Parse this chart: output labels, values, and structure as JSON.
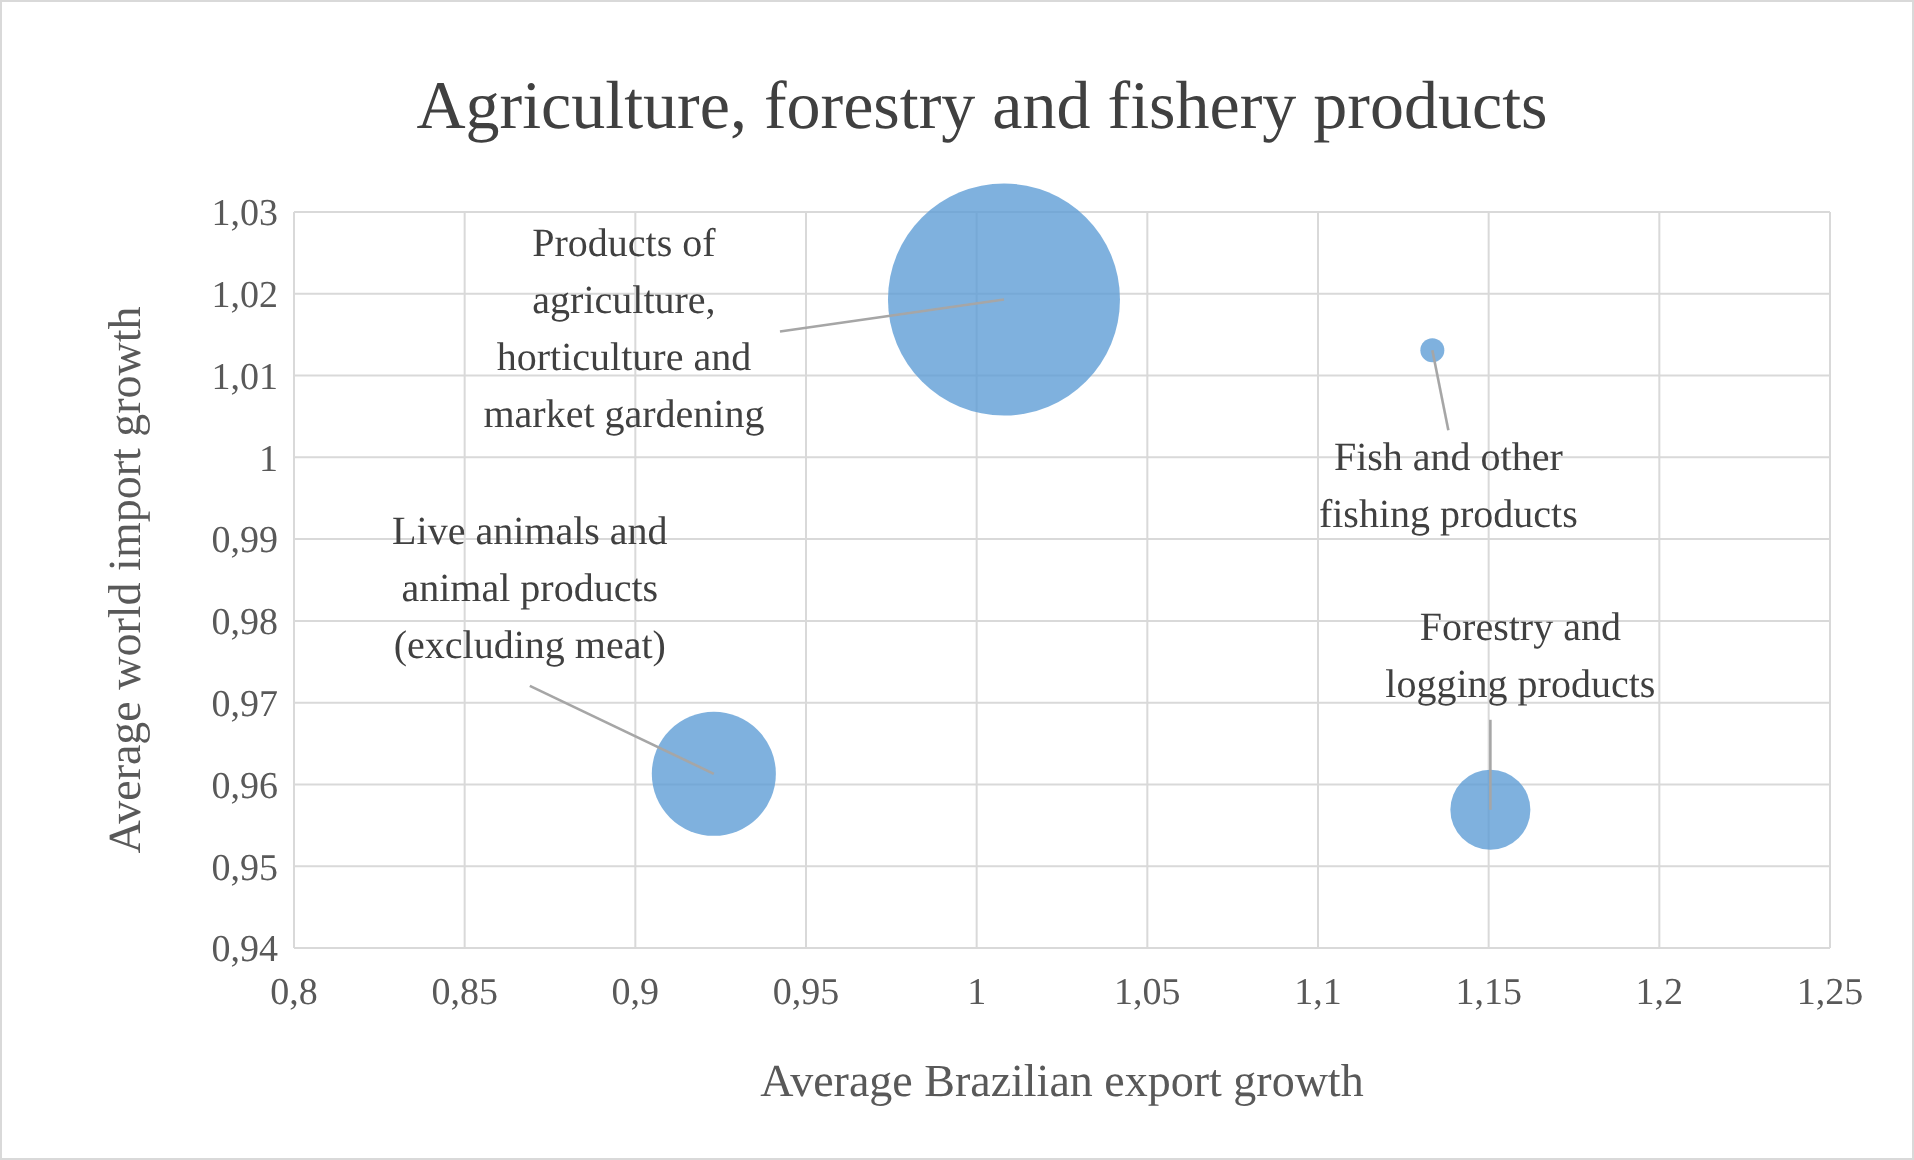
{
  "chart_data": {
    "type": "bubble",
    "title": "Agriculture, forestry and fishery products",
    "xlabel": "Average Brazilian export growth",
    "ylabel": "Average world import growth",
    "x": [
      1.008,
      1.1335,
      0.923,
      1.1505
    ],
    "values": [
      1.0193,
      1.0131,
      0.9613,
      0.9569
    ],
    "sizes": [
      1,
      0.0107,
      0.286,
      0.119
    ],
    "color": "#5b9bd5",
    "xlim": [
      0.8,
      1.25
    ],
    "xticks": [
      {
        "value": 0.8,
        "label": "0,8"
      },
      {
        "value": 0.85,
        "label": "0,85"
      },
      {
        "value": 0.9,
        "label": "0,9"
      },
      {
        "value": 0.95,
        "label": "0,95"
      },
      {
        "value": 1,
        "label": "1"
      },
      {
        "value": 1.05,
        "label": "1,05"
      },
      {
        "value": 1.1,
        "label": "1,1"
      },
      {
        "value": 1.15,
        "label": "1,15"
      },
      {
        "value": 1.2,
        "label": "1,2"
      },
      {
        "value": 1.25,
        "label": "1,25"
      }
    ],
    "ylim": [
      0.94,
      1.03
    ],
    "yticks": [
      {
        "value": 0.94,
        "label": "0,94"
      },
      {
        "value": 0.95,
        "label": "0,95"
      },
      {
        "value": 0.96,
        "label": "0,96"
      },
      {
        "value": 0.97,
        "label": "0,97"
      },
      {
        "value": 0.98,
        "label": "0,98"
      },
      {
        "value": 0.99,
        "label": "0,99"
      },
      {
        "value": 1,
        "label": "1"
      },
      {
        "value": 1.01,
        "label": "1,01"
      },
      {
        "value": 1.02,
        "label": "1,02"
      },
      {
        "value": 1.03,
        "label": "1,03"
      }
    ],
    "grid": true,
    "annotations": [
      {
        "text": "Products of agriculture, horticulture and market gardening",
        "x": 1.008,
        "y": 1.0193
      },
      {
        "text": "Fish and other fishing products",
        "x": 1.1335,
        "y": 1.0131
      },
      {
        "text": "Live animals and animal products (excluding meat)",
        "x": 0.923,
        "y": 0.9613
      },
      {
        "text": "Forestry and logging products",
        "x": 1.1505,
        "y": 0.9569
      }
    ]
  }
}
